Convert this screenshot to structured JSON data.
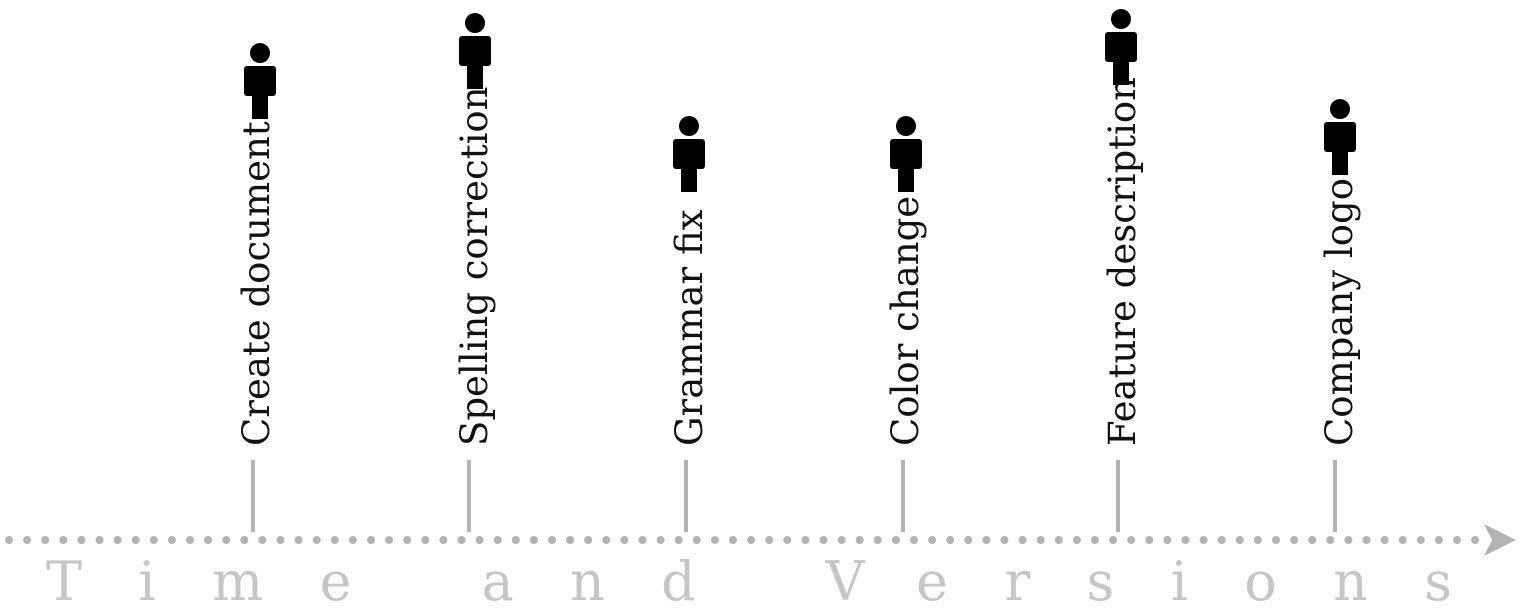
{
  "versions": [
    {
      "label": "Create document"
    },
    {
      "label": "Spelling correction"
    },
    {
      "label": "Grammar fix"
    },
    {
      "label": "Color change"
    },
    {
      "label": "Feature description"
    },
    {
      "label": "Company logo"
    }
  ],
  "axis": {
    "title": "Time and Versions",
    "icon": "arrow-right-icon"
  },
  "icons": {
    "author": "person-icon"
  },
  "colors": {
    "label": "#111111",
    "icon": "#000000",
    "line": "#b3b3b3",
    "axis_title": "#c6c6c6",
    "background": "#ffffff"
  }
}
